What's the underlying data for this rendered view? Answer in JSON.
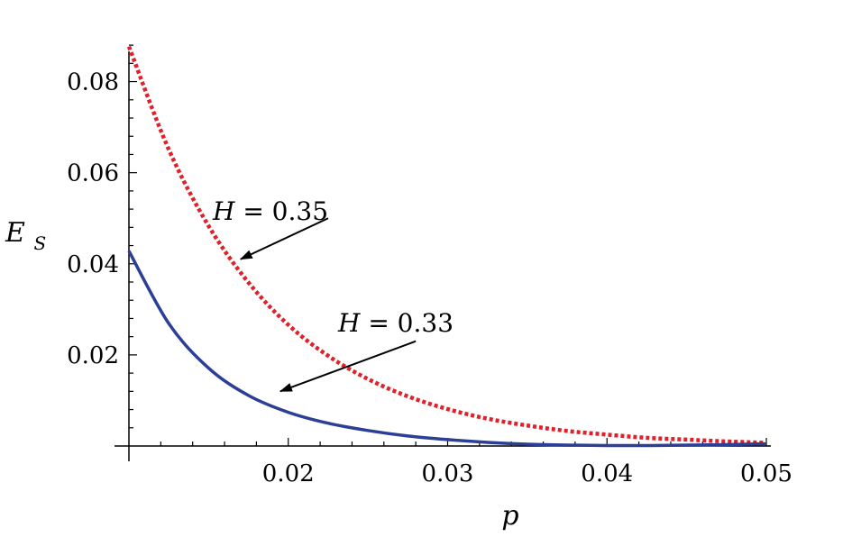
{
  "chart_data": {
    "type": "line",
    "xlabel": "p",
    "ylabel": "E",
    "ylabel_subscript": "S",
    "xlim": [
      0.01,
      0.05
    ],
    "ylim": [
      0,
      0.09
    ],
    "xticks": [
      0.02,
      0.03,
      0.04,
      0.05
    ],
    "xtick_labels": [
      "0.02",
      "0.03",
      "0.04",
      "0.05"
    ],
    "yticks": [
      0.02,
      0.04,
      0.06,
      0.08
    ],
    "ytick_labels": [
      "0.02",
      "0.04",
      "0.06",
      "0.08"
    ],
    "grid": false,
    "legend": "none",
    "series": [
      {
        "color": "#e0202a",
        "style": "dotted",
        "x": [
          0.01,
          0.0125,
          0.015,
          0.0175,
          0.02,
          0.0225,
          0.025,
          0.0275,
          0.03,
          0.0325,
          0.035,
          0.0375,
          0.04,
          0.0425,
          0.045,
          0.0475,
          0.05
        ],
        "y": [
          0.0877,
          0.0651,
          0.0483,
          0.0359,
          0.0266,
          0.0198,
          0.0147,
          0.0109,
          0.0081,
          0.006,
          0.0045,
          0.0033,
          0.0025,
          0.0018,
          0.0014,
          0.001,
          0.0007
        ]
      },
      {
        "color": "#2b3f96",
        "style": "solid",
        "x": [
          0.01,
          0.0125,
          0.015,
          0.0175,
          0.02,
          0.0225,
          0.025,
          0.0275,
          0.03,
          0.0325,
          0.035,
          0.0375,
          0.04,
          0.0425,
          0.045,
          0.0475,
          0.05
        ],
        "y": [
          0.0428,
          0.0269,
          0.0171,
          0.0111,
          0.0074,
          0.005,
          0.0034,
          0.0022,
          0.0014,
          0.0008,
          0.0004,
          0.0002,
          0.0001,
          0.0001,
          0.0002,
          0.0003,
          0.0005
        ]
      }
    ],
    "annotations": [
      {
        "prefix": "H",
        "text": " = 0.35",
        "arrow_from": [
          0.0225,
          0.05
        ],
        "arrow_to": [
          0.017,
          0.041
        ]
      },
      {
        "prefix": "H",
        "text": " = 0.33",
        "arrow_from": [
          0.028,
          0.023
        ],
        "arrow_to": [
          0.0195,
          0.012
        ]
      }
    ]
  }
}
